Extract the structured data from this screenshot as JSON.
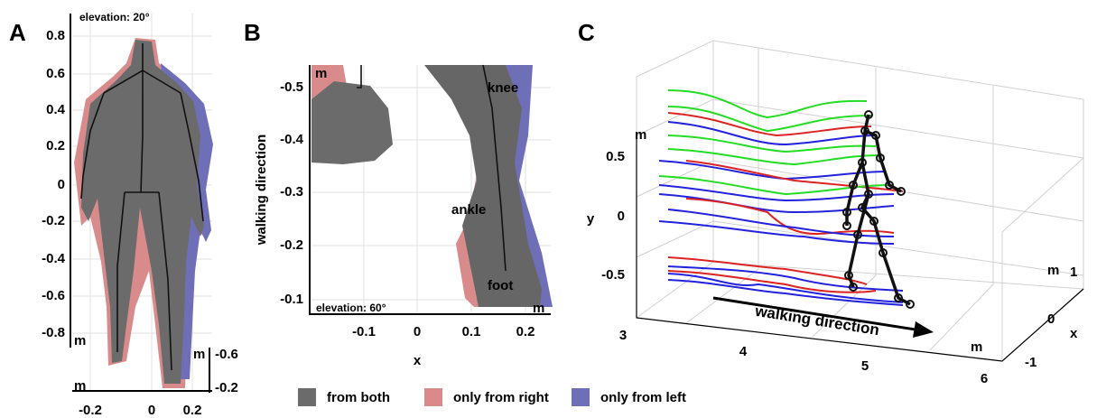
{
  "panels": [
    {
      "label": "A",
      "annotation": "elevation: 20°",
      "y_ticks": [
        "0.8",
        "0.6",
        "0.4",
        "0.2",
        "0",
        "-0.2",
        "-0.4",
        "-0.6",
        "-0.8"
      ],
      "x_ticks": [
        "-0.2",
        "0",
        "0.2"
      ],
      "z_ticks": [
        "-0.6",
        "-0.2"
      ],
      "units": [
        "m",
        "m",
        "m"
      ]
    },
    {
      "label": "B",
      "annotation": "elevation: 60°",
      "y_label": "walking direction",
      "x_label": "x",
      "y_ticks": [
        "-0.5",
        "-0.4",
        "-0.3",
        "-0.2",
        "-0.1"
      ],
      "x_ticks": [
        "-0.1",
        "0",
        "0.1",
        "0.2"
      ],
      "joint_labels": [
        "knee",
        "ankle",
        "foot"
      ],
      "units": [
        "m",
        "m"
      ]
    },
    {
      "label": "C",
      "y_label": "y",
      "z_label": "x",
      "arrow_label": "walking direction",
      "y_ticks": [
        "0.5",
        "0",
        "-0.5"
      ],
      "x_ticks": [
        "3",
        "4",
        "5",
        "6"
      ],
      "z_ticks": [
        "1",
        "0",
        "-1"
      ],
      "units": [
        "m",
        "m",
        "m"
      ]
    }
  ],
  "legend": [
    {
      "label": "from both",
      "color": "#6b6b6b"
    },
    {
      "label": "only from right",
      "color": "#d98b8b"
    },
    {
      "label": "only from left",
      "color": "#6f6fb8"
    }
  ]
}
